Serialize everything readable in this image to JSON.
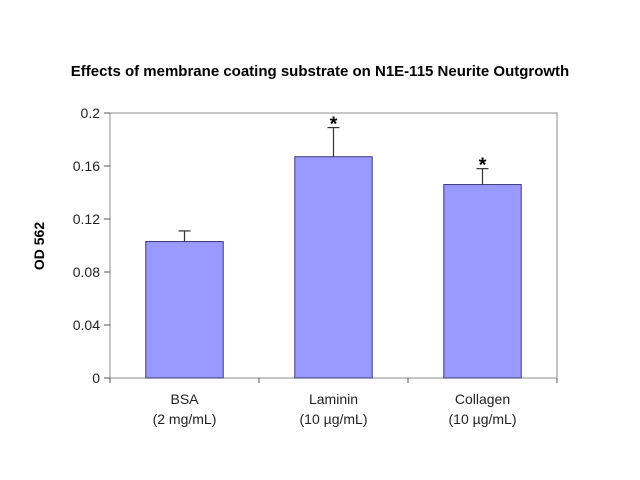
{
  "chart_data": {
    "type": "bar",
    "title": "Effects of membrane coating substrate on N1E-115 Neurite Outgrowth",
    "ylabel": "OD 562",
    "xlabel": "",
    "ylim": [
      0,
      0.2
    ],
    "yticks": [
      "0",
      "0.04",
      "0.08",
      "0.12",
      "0.16",
      "0.2"
    ],
    "categories": [
      [
        "BSA",
        "(2 mg/mL)"
      ],
      [
        "Laminin",
        "(10 µg/mL)"
      ],
      [
        "Collagen",
        "(10 µg/mL)"
      ]
    ],
    "values": [
      0.103,
      0.167,
      0.146
    ],
    "errors": [
      0.008,
      0.022,
      0.012
    ],
    "significance": [
      "",
      "*",
      "*"
    ],
    "bar_color": "#9999ff",
    "grid": false,
    "legend": "none"
  }
}
